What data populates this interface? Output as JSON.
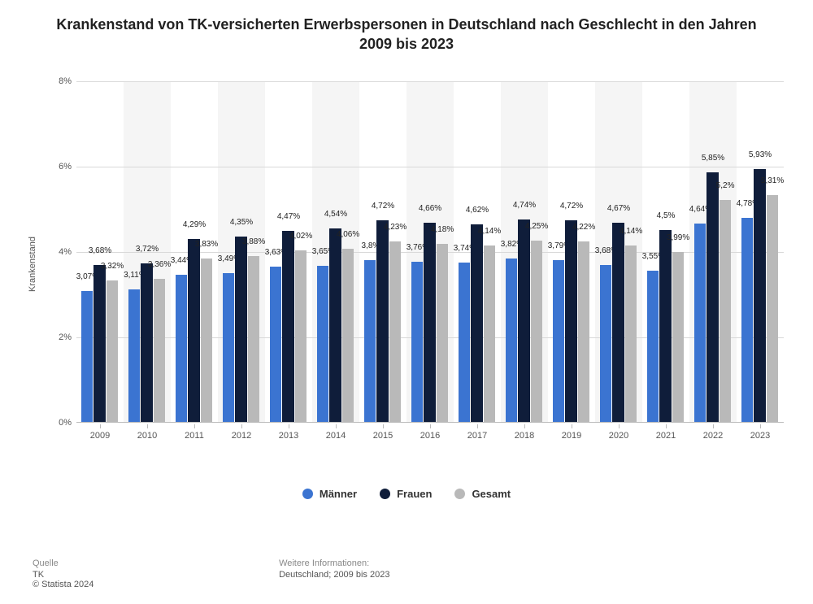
{
  "title": "Krankenstand von TK-versicherten Erwerbspersonen in Deutschland nach Geschlecht in den Jahren 2009 bis 2023",
  "chart": {
    "type": "bar",
    "ylabel": "Krankenstand",
    "ylim": [
      0,
      8
    ],
    "yticks": [
      {
        "v": 0,
        "label": "0%"
      },
      {
        "v": 2,
        "label": "2%"
      },
      {
        "v": 4,
        "label": "4%"
      },
      {
        "v": 6,
        "label": "6%"
      },
      {
        "v": 8,
        "label": "8%"
      }
    ],
    "categories": [
      "2009",
      "2010",
      "2011",
      "2012",
      "2013",
      "2014",
      "2015",
      "2016",
      "2017",
      "2018",
      "2019",
      "2020",
      "2021",
      "2022",
      "2023"
    ],
    "series": [
      {
        "name": "Männer",
        "color": "#3b74d1",
        "values": [
          3.07,
          3.11,
          3.44,
          3.49,
          3.63,
          3.65,
          3.8,
          3.76,
          3.74,
          3.82,
          3.79,
          3.68,
          3.55,
          4.64,
          4.78
        ],
        "labels": [
          "3,07%",
          "3,11%",
          "3,44%",
          "3,49%",
          "3,63%",
          "3,65%",
          "3,8%",
          "3,76%",
          "3,74%",
          "3,82%",
          "3,79%",
          "3,68%",
          "3,55%",
          "4,64%",
          "4,78%"
        ]
      },
      {
        "name": "Frauen",
        "color": "#0f1d3a",
        "values": [
          3.68,
          3.72,
          4.29,
          4.35,
          4.47,
          4.54,
          4.72,
          4.66,
          4.62,
          4.74,
          4.72,
          4.67,
          4.5,
          5.85,
          5.93
        ],
        "labels": [
          "3,68%",
          "3,72%",
          "4,29%",
          "4,35%",
          "4,47%",
          "4,54%",
          "4,72%",
          "4,66%",
          "4,62%",
          "4,74%",
          "4,72%",
          "4,67%",
          "4,5%",
          "5,85%",
          "5,93%"
        ]
      },
      {
        "name": "Gesamt",
        "color": "#b9b9b9",
        "values": [
          3.32,
          3.36,
          3.83,
          3.88,
          4.02,
          4.06,
          4.23,
          4.18,
          4.14,
          4.25,
          4.22,
          4.14,
          3.99,
          5.2,
          5.31
        ],
        "labels": [
          "3,32%",
          "3,36%",
          "3,83%",
          "3,88%",
          "4,02%",
          "4,06%",
          "4,23%",
          "4,18%",
          "4,14%",
          "4,25%",
          "4,22%",
          "4,14%",
          "3,99%",
          "5,2%",
          "5,31%"
        ]
      }
    ],
    "background_color": "#ffffff",
    "band_color": "#f5f5f5",
    "grid_color": "#d9d9d9",
    "title_fontsize": 18,
    "label_fontsize": 10,
    "axis_fontsize": 11,
    "bar_gap_ratio": 0.22
  },
  "legend": {
    "items": [
      {
        "label": "Männer",
        "color": "#3b74d1"
      },
      {
        "label": "Frauen",
        "color": "#0f1d3a"
      },
      {
        "label": "Gesamt",
        "color": "#b9b9b9"
      }
    ]
  },
  "footer": {
    "source_label": "Quelle",
    "source_value": "TK",
    "copyright": "© Statista 2024",
    "info_label": "Weitere Informationen:",
    "info_value": "Deutschland; 2009 bis 2023"
  }
}
